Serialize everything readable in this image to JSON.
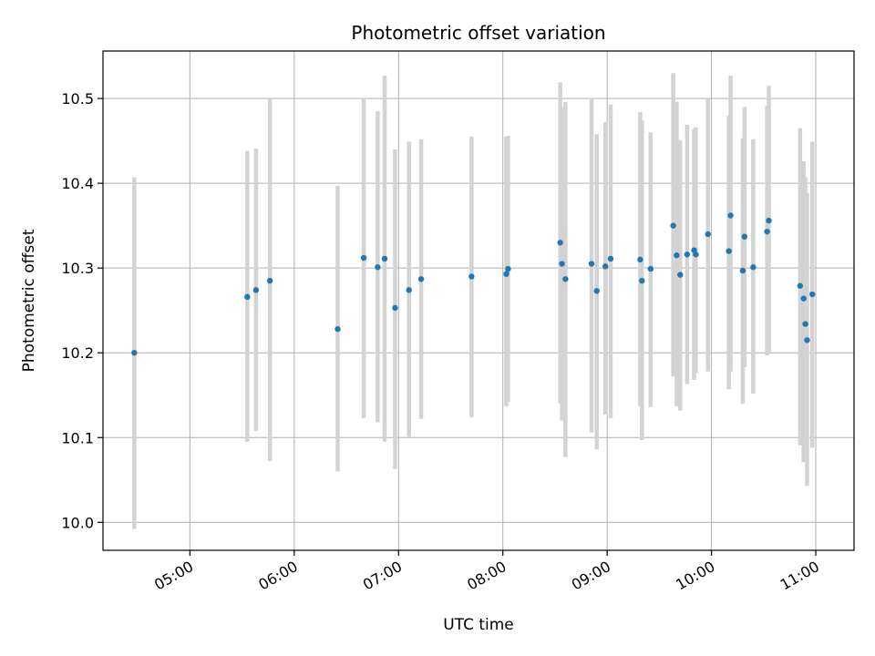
{
  "chart_data": {
    "type": "scatter",
    "title": "Photometric offset variation",
    "xlabel": "UTC time",
    "ylabel": "Photometric offset",
    "x_axis_type": "time",
    "xlim": [
      "04:10",
      "11:22"
    ],
    "ylim": [
      9.967,
      10.556
    ],
    "x_ticks": [
      "05:00",
      "06:00",
      "07:00",
      "08:00",
      "09:00",
      "10:00",
      "11:00"
    ],
    "y_ticks": [
      10.0,
      10.1,
      10.2,
      10.3,
      10.4,
      10.5
    ],
    "y_tick_labels": [
      "10.0",
      "10.1",
      "10.2",
      "10.3",
      "10.4",
      "10.5"
    ],
    "grid": true,
    "legend": "none",
    "colors": {
      "point": "#1f77b4",
      "error_bar": "#d3d3d3",
      "grid": "#b0b0b0",
      "axes": "#000000"
    },
    "series": [
      {
        "x": [
          "04:28",
          "05:33",
          "05:38",
          "05:46",
          "06:25",
          "06:40",
          "06:48",
          "06:52",
          "06:58",
          "07:06",
          "07:13",
          "07:42",
          "08:02",
          "08:03",
          "08:33",
          "08:34",
          "08:36",
          "08:51",
          "08:54",
          "08:59",
          "09:02",
          "09:19",
          "09:20",
          "09:25",
          "09:38",
          "09:40",
          "09:42",
          "09:46",
          "09:50",
          "09:51",
          "09:58",
          "10:10",
          "10:11",
          "10:18",
          "10:19",
          "10:24",
          "10:32",
          "10:33",
          "10:51",
          "10:53",
          "10:54",
          "10:55",
          "10:58"
        ],
        "y": [
          10.2,
          10.266,
          10.274,
          10.285,
          10.228,
          10.312,
          10.301,
          10.311,
          10.253,
          10.274,
          10.287,
          10.29,
          10.293,
          10.299,
          10.33,
          10.305,
          10.287,
          10.305,
          10.273,
          10.302,
          10.311,
          10.31,
          10.285,
          10.299,
          10.35,
          10.315,
          10.292,
          10.316,
          10.321,
          10.316,
          10.34,
          10.32,
          10.362,
          10.297,
          10.337,
          10.301,
          10.343,
          10.356,
          10.279,
          10.264,
          10.234,
          10.215,
          10.269
        ],
        "y_low": [
          9.992,
          10.095,
          10.108,
          10.072,
          10.06,
          10.123,
          10.118,
          10.095,
          10.063,
          10.101,
          10.122,
          10.124,
          10.137,
          10.142,
          10.14,
          10.12,
          10.077,
          10.106,
          10.086,
          10.127,
          10.123,
          10.137,
          10.097,
          10.136,
          10.172,
          10.137,
          10.132,
          10.163,
          10.168,
          10.176,
          10.178,
          10.157,
          10.178,
          10.14,
          10.183,
          10.152,
          10.197,
          10.2,
          10.091,
          10.071,
          10.086,
          10.043,
          10.088
        ],
        "y_high": [
          10.407,
          10.438,
          10.441,
          10.5,
          10.397,
          10.5,
          10.485,
          10.527,
          10.44,
          10.449,
          10.452,
          10.455,
          10.455,
          10.456,
          10.519,
          10.49,
          10.496,
          10.5,
          10.458,
          10.472,
          10.493,
          10.484,
          10.474,
          10.46,
          10.53,
          10.496,
          10.451,
          10.469,
          10.464,
          10.466,
          10.5,
          10.48,
          10.527,
          10.453,
          10.49,
          10.452,
          10.491,
          10.515,
          10.465,
          10.426,
          10.407,
          10.388,
          10.449
        ]
      }
    ]
  }
}
